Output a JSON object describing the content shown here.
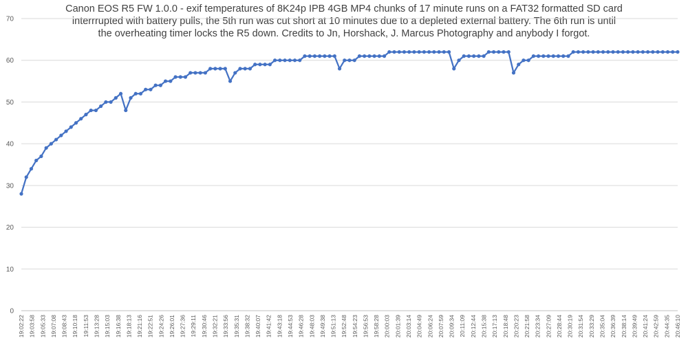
{
  "chart_data": {
    "type": "line",
    "title_lines": [
      "Canon EOS R5 FW 1.0.0 - exif temperatures of 8K24p IPB 4GB MP4 chunks of 17 minute runs on a FAT32 formatted SD card",
      "interrrupted with battery pulls, the 5th run was cut short at 10 minutes due to a depleted external battery. The 6th run is until",
      "the overheating timer locks the R5 down. Credits to Jn, Horshack, J. Marcus Photography and anybody I forgot."
    ],
    "xlabel": "",
    "ylabel": "",
    "ylim": [
      0,
      70
    ],
    "y_ticks": [
      "0",
      "10",
      "20",
      "30",
      "40",
      "50",
      "60",
      "70"
    ],
    "grid": "horizontal",
    "color": "#4472C4",
    "x_tick_labels": [
      "19:02:22",
      "19:03:58",
      "19:05:33",
      "19:07:08",
      "19:08:43",
      "19:10:18",
      "19:11:53",
      "19:13:28",
      "19:15:03",
      "19:16:38",
      "19:18:13",
      "19:21:16",
      "19:22:51",
      "19:24:26",
      "19:26:01",
      "19:27:36",
      "19:29:11",
      "19:30:46",
      "19:32:21",
      "19:33:56",
      "19:35:31",
      "19:38:32",
      "19:40:07",
      "19:41:42",
      "19:43:18",
      "19:44:53",
      "19:46:28",
      "19:48:03",
      "19:49:38",
      "19:51:13",
      "19:52:48",
      "19:54:23",
      "19:56:53",
      "19:58:28",
      "20:00:03",
      "20:01:39",
      "20:03:14",
      "20:04:49",
      "20:06:24",
      "20:07:59",
      "20:09:34",
      "20:11:09",
      "20:12:44",
      "20:15:38",
      "20:17:13",
      "20:18:48",
      "20:20:23",
      "20:21:58",
      "20:23:34",
      "20:27:09",
      "20:28:44",
      "20:30:19",
      "20:31:54",
      "20:33:29",
      "20:35:04",
      "20:36:39",
      "20:38:14",
      "20:39:49",
      "20:41:24",
      "20:42:59",
      "20:44:35",
      "20:46:10"
    ],
    "values": [
      28,
      32,
      34,
      36,
      37,
      39,
      40,
      41,
      42,
      43,
      44,
      45,
      46,
      47,
      48,
      48,
      49,
      50,
      50,
      51,
      52,
      48,
      51,
      52,
      52,
      53,
      53,
      54,
      54,
      55,
      55,
      56,
      56,
      56,
      57,
      57,
      57,
      57,
      58,
      58,
      58,
      58,
      55,
      57,
      58,
      58,
      58,
      59,
      59,
      59,
      59,
      60,
      60,
      60,
      60,
      60,
      60,
      61,
      61,
      61,
      61,
      61,
      61,
      61,
      58,
      60,
      60,
      60,
      61,
      61,
      61,
      61,
      61,
      61,
      62,
      62,
      62,
      62,
      62,
      62,
      62,
      62,
      62,
      62,
      62,
      62,
      62,
      58,
      60,
      61,
      61,
      61,
      61,
      61,
      62,
      62,
      62,
      62,
      62,
      57,
      59,
      60,
      60,
      61,
      61,
      61,
      61,
      61,
      61,
      61,
      61,
      62,
      62,
      62,
      62,
      62,
      62,
      62,
      62,
      62,
      62,
      62,
      62,
      62,
      62,
      62,
      62,
      62,
      62,
      62,
      62,
      62,
      62
    ]
  }
}
